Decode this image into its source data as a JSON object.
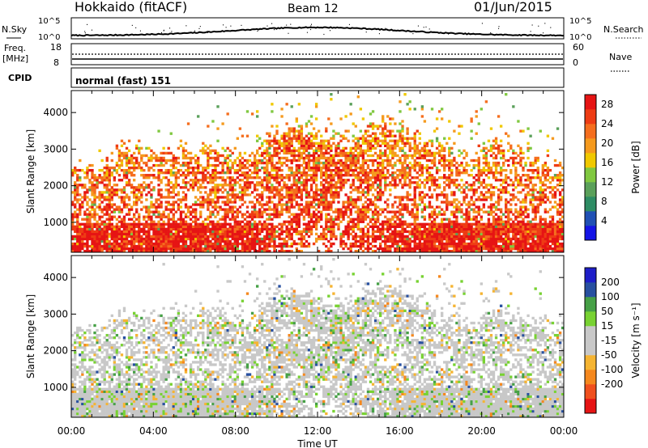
{
  "header": {
    "station": "Hokkaido (fitACF)",
    "beam": "Beam 12",
    "date": "01/Jun/2015"
  },
  "noise_panel": {
    "left_label": "N.Sky",
    "right_label": "N.Search",
    "left_ticks": [
      "10^5",
      "10^0"
    ],
    "right_ticks": [
      "10^5",
      "10^0"
    ]
  },
  "freq_panel": {
    "left_label_1": "Freq.",
    "left_label_2": "[MHz]",
    "left_ticks": [
      "18",
      "8"
    ],
    "right_label": "Nave",
    "right_ticks": [
      "60",
      "0"
    ]
  },
  "cpid_panel": {
    "label": "CPID",
    "text": "normal (fast) 151"
  },
  "colors": {
    "power_scale": [
      "#1414e6",
      "#2050b4",
      "#2e8c64",
      "#5aa05a",
      "#80c840",
      "#f0c800",
      "#f59a1e",
      "#f56e1e",
      "#ee3c14",
      "#e61414"
    ],
    "velocity_scale": [
      "#e61414",
      "#f0501e",
      "#f5881e",
      "#f5b432",
      "#c8c8c8",
      "#c8c8c8",
      "#78d232",
      "#46a046",
      "#2850a0",
      "#1e1ec8"
    ],
    "background": "#ffffff"
  },
  "chart_data": [
    {
      "type": "heatmap",
      "title": "",
      "xlabel": "Time UT",
      "ylabel": "Slant Range [km]",
      "x_tick_labels": [
        "00:00",
        "04:00",
        "08:00",
        "12:00",
        "16:00",
        "20:00",
        "00:00"
      ],
      "y_tick_labels": [
        "1000",
        "2000",
        "3000",
        "4000"
      ],
      "ylim": [
        180,
        4600
      ],
      "colorbar": {
        "label": "Power [dB]",
        "tick_labels": [
          "28",
          "24",
          "20",
          "16",
          "12",
          "8",
          "4"
        ],
        "range": [
          0,
          30
        ]
      }
    },
    {
      "type": "heatmap",
      "title": "",
      "xlabel": "Time UT",
      "ylabel": "Slant Range [km]",
      "x_tick_labels": [
        "00:00",
        "04:00",
        "08:00",
        "12:00",
        "16:00",
        "20:00",
        "00:00"
      ],
      "y_tick_labels": [
        "1000",
        "2000",
        "3000",
        "4000"
      ],
      "ylim": [
        180,
        4600
      ],
      "colorbar": {
        "label": "Velocity [m s⁻¹]",
        "tick_labels": [
          "200",
          "100",
          "50",
          "15",
          "-15",
          "-50",
          "-100",
          "-200"
        ],
        "range": [
          -250,
          250
        ]
      }
    }
  ]
}
